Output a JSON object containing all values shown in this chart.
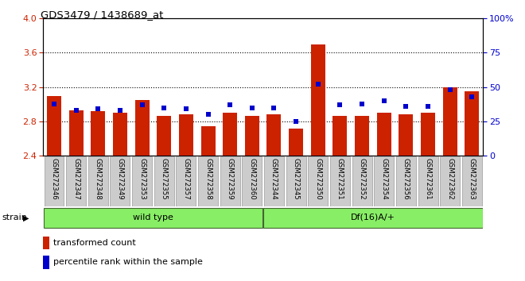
{
  "title": "GDS3479 / 1438689_at",
  "samples": [
    "GSM272346",
    "GSM272347",
    "GSM272348",
    "GSM272349",
    "GSM272353",
    "GSM272355",
    "GSM272357",
    "GSM272358",
    "GSM272359",
    "GSM272360",
    "GSM272344",
    "GSM272345",
    "GSM272350",
    "GSM272351",
    "GSM272352",
    "GSM272354",
    "GSM272356",
    "GSM272361",
    "GSM272362",
    "GSM272363"
  ],
  "red_values": [
    3.1,
    2.93,
    2.92,
    2.9,
    3.05,
    2.87,
    2.88,
    2.75,
    2.9,
    2.87,
    2.88,
    2.72,
    3.7,
    2.87,
    2.87,
    2.9,
    2.88,
    2.9,
    3.2,
    3.15
  ],
  "blue_percentiles": [
    38,
    33,
    34,
    33,
    37,
    35,
    34,
    30,
    37,
    35,
    35,
    25,
    52,
    37,
    38,
    40,
    36,
    36,
    48,
    43
  ],
  "group1_count": 10,
  "group2_count": 10,
  "group1_label": "wild type",
  "group2_label": "Df(16)A/+",
  "ylim_left": [
    2.4,
    4.0
  ],
  "ylim_right": [
    0,
    100
  ],
  "yticks_left": [
    2.4,
    2.8,
    3.2,
    3.6,
    4.0
  ],
  "yticks_right": [
    0,
    25,
    50,
    75,
    100
  ],
  "bar_color": "#cc2200",
  "dot_color": "#0000cc",
  "grid_color": "#000000",
  "bg_color": "#ffffff",
  "tick_label_color_left": "#cc2200",
  "tick_label_color_right": "#0000cc",
  "legend_items": [
    "transformed count",
    "percentile rank within the sample"
  ],
  "strain_label": "strain",
  "group_bg_color": "#88ee66",
  "tick_bg_color": "#cccccc",
  "gridline_yticks": [
    2.8,
    3.2,
    3.6
  ]
}
